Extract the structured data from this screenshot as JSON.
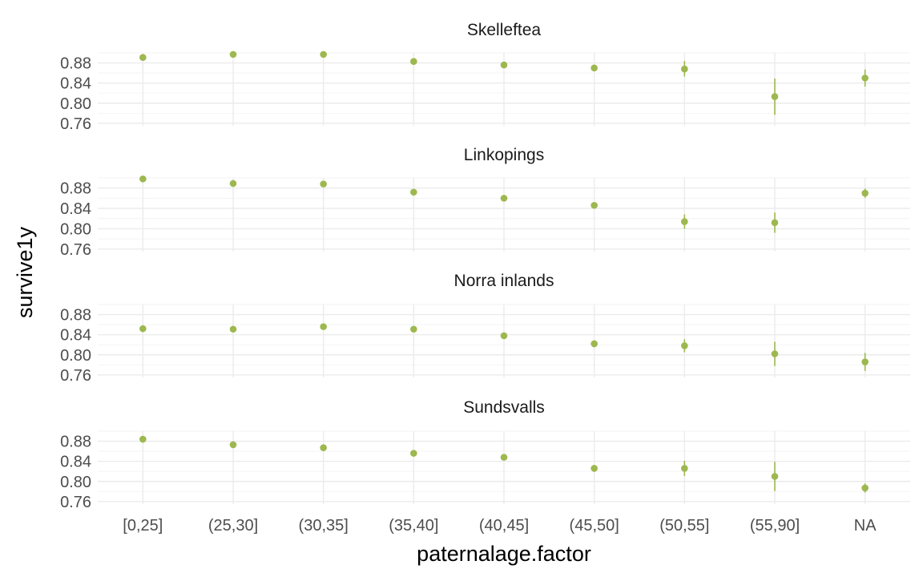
{
  "chart_data": {
    "type": "scatter",
    "xlabel": "paternalage.factor",
    "ylabel": "survive1y",
    "categories": [
      "[0,25]",
      "(25,30]",
      "(30,35]",
      "(35,40]",
      "(40,45]",
      "(45,50]",
      "(50,55]",
      "(55,90]",
      "NA"
    ],
    "y_ticks": [
      "0.76",
      "0.80",
      "0.84",
      "0.88"
    ],
    "ylim": [
      0.755,
      0.9
    ],
    "grid": true,
    "legend": "none",
    "point_color": "#9db84f",
    "facets": [
      {
        "title": "Skelleftea",
        "values": [
          0.891,
          0.897,
          0.897,
          0.883,
          0.876,
          0.87,
          0.868,
          0.813,
          0.85
        ],
        "lower": [
          0.887,
          0.893,
          0.893,
          0.88,
          0.873,
          0.866,
          0.853,
          0.777,
          0.833
        ],
        "upper": [
          0.896,
          0.901,
          0.901,
          0.887,
          0.879,
          0.874,
          0.884,
          0.849,
          0.867
        ]
      },
      {
        "title": "Linkopings",
        "values": [
          0.898,
          0.889,
          0.888,
          0.872,
          0.86,
          0.846,
          0.814,
          0.812,
          0.87
        ],
        "lower": [
          0.895,
          0.886,
          0.885,
          0.869,
          0.857,
          0.842,
          0.8,
          0.792,
          0.861
        ],
        "upper": [
          0.901,
          0.892,
          0.891,
          0.875,
          0.863,
          0.85,
          0.828,
          0.832,
          0.879
        ]
      },
      {
        "title": "Norra inlands",
        "values": [
          0.852,
          0.851,
          0.856,
          0.851,
          0.838,
          0.822,
          0.818,
          0.802,
          0.786
        ],
        "lower": [
          0.845,
          0.846,
          0.851,
          0.846,
          0.833,
          0.815,
          0.805,
          0.778,
          0.768
        ],
        "upper": [
          0.859,
          0.856,
          0.861,
          0.856,
          0.843,
          0.829,
          0.831,
          0.826,
          0.804
        ]
      },
      {
        "title": "Sundsvalls",
        "values": [
          0.884,
          0.873,
          0.867,
          0.856,
          0.848,
          0.826,
          0.826,
          0.81,
          0.787
        ],
        "lower": [
          0.88,
          0.869,
          0.863,
          0.852,
          0.844,
          0.819,
          0.811,
          0.781,
          0.778
        ],
        "upper": [
          0.888,
          0.877,
          0.871,
          0.86,
          0.852,
          0.833,
          0.841,
          0.839,
          0.796
        ]
      }
    ]
  }
}
